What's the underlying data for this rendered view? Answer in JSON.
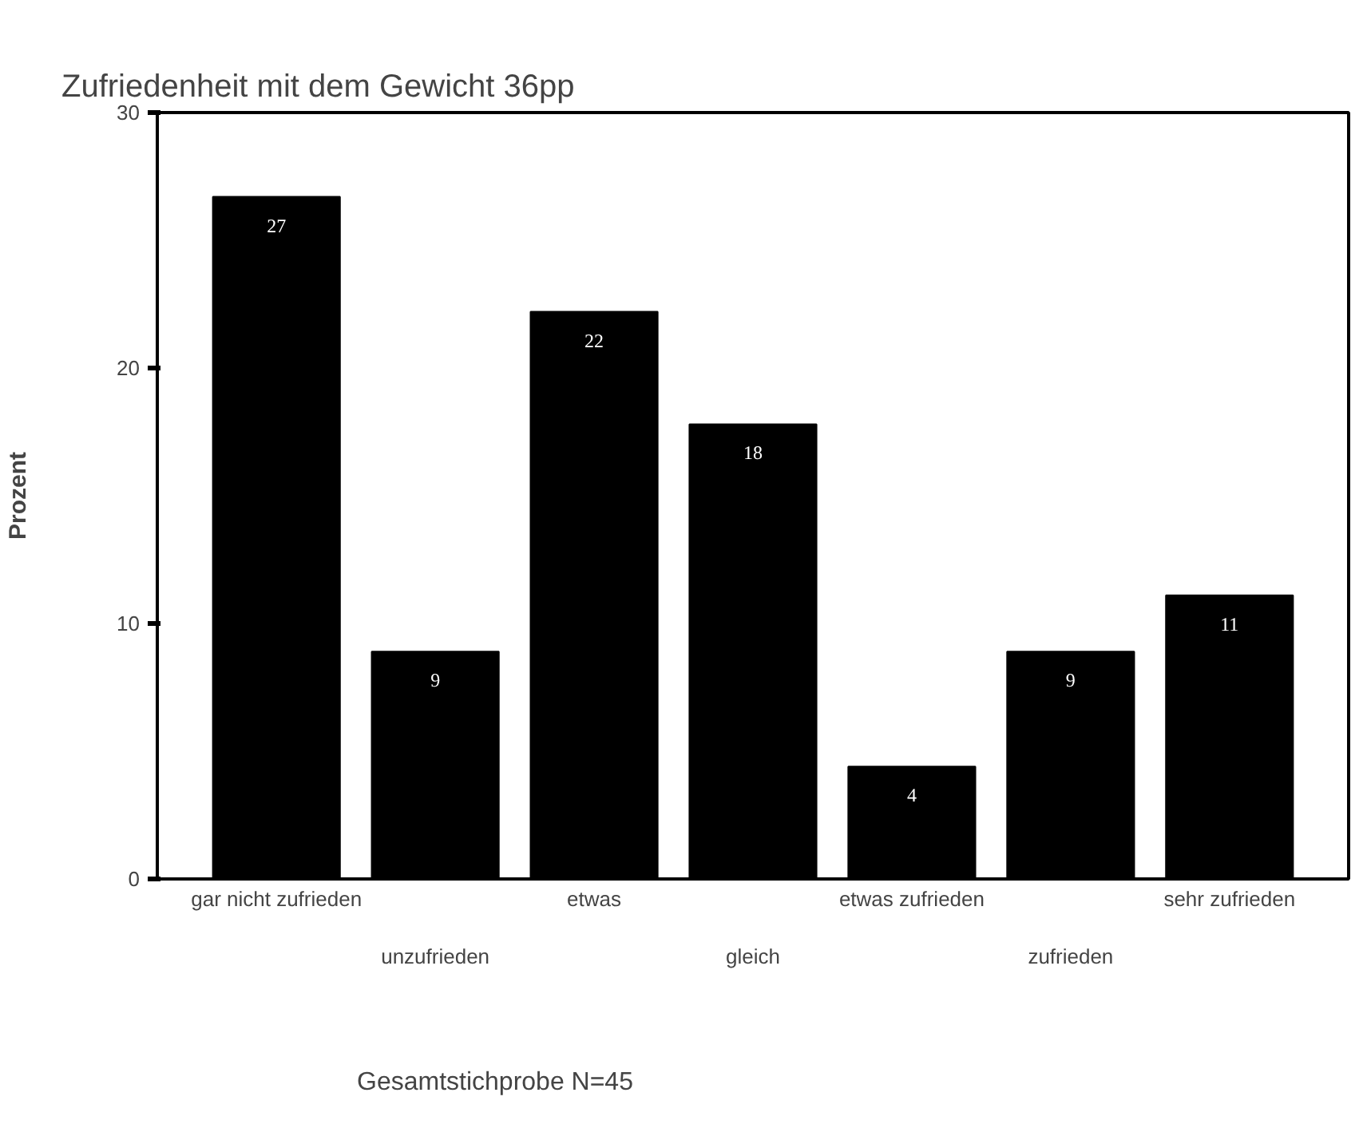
{
  "chart_data": {
    "type": "bar",
    "title": "Zufriedenheit mit dem Gewicht 36pp",
    "ylabel": "Prozent",
    "categories": [
      "gar nicht zufrieden",
      "unzufrieden",
      "etwas",
      "gleich",
      "etwas zufrieden",
      "zufrieden",
      "sehr zufrieden"
    ],
    "values": [
      26.7,
      8.9,
      22.2,
      17.8,
      4.4,
      8.9,
      11.1
    ],
    "value_labels": [
      "27",
      "9",
      "22",
      "18",
      "4",
      "9",
      "11"
    ],
    "color": "#000000",
    "ylim": [
      0,
      30
    ],
    "yticks": [
      0,
      10,
      20,
      30
    ],
    "grid": false,
    "annotations": [
      "Gesamtstichprobe N=45"
    ]
  }
}
